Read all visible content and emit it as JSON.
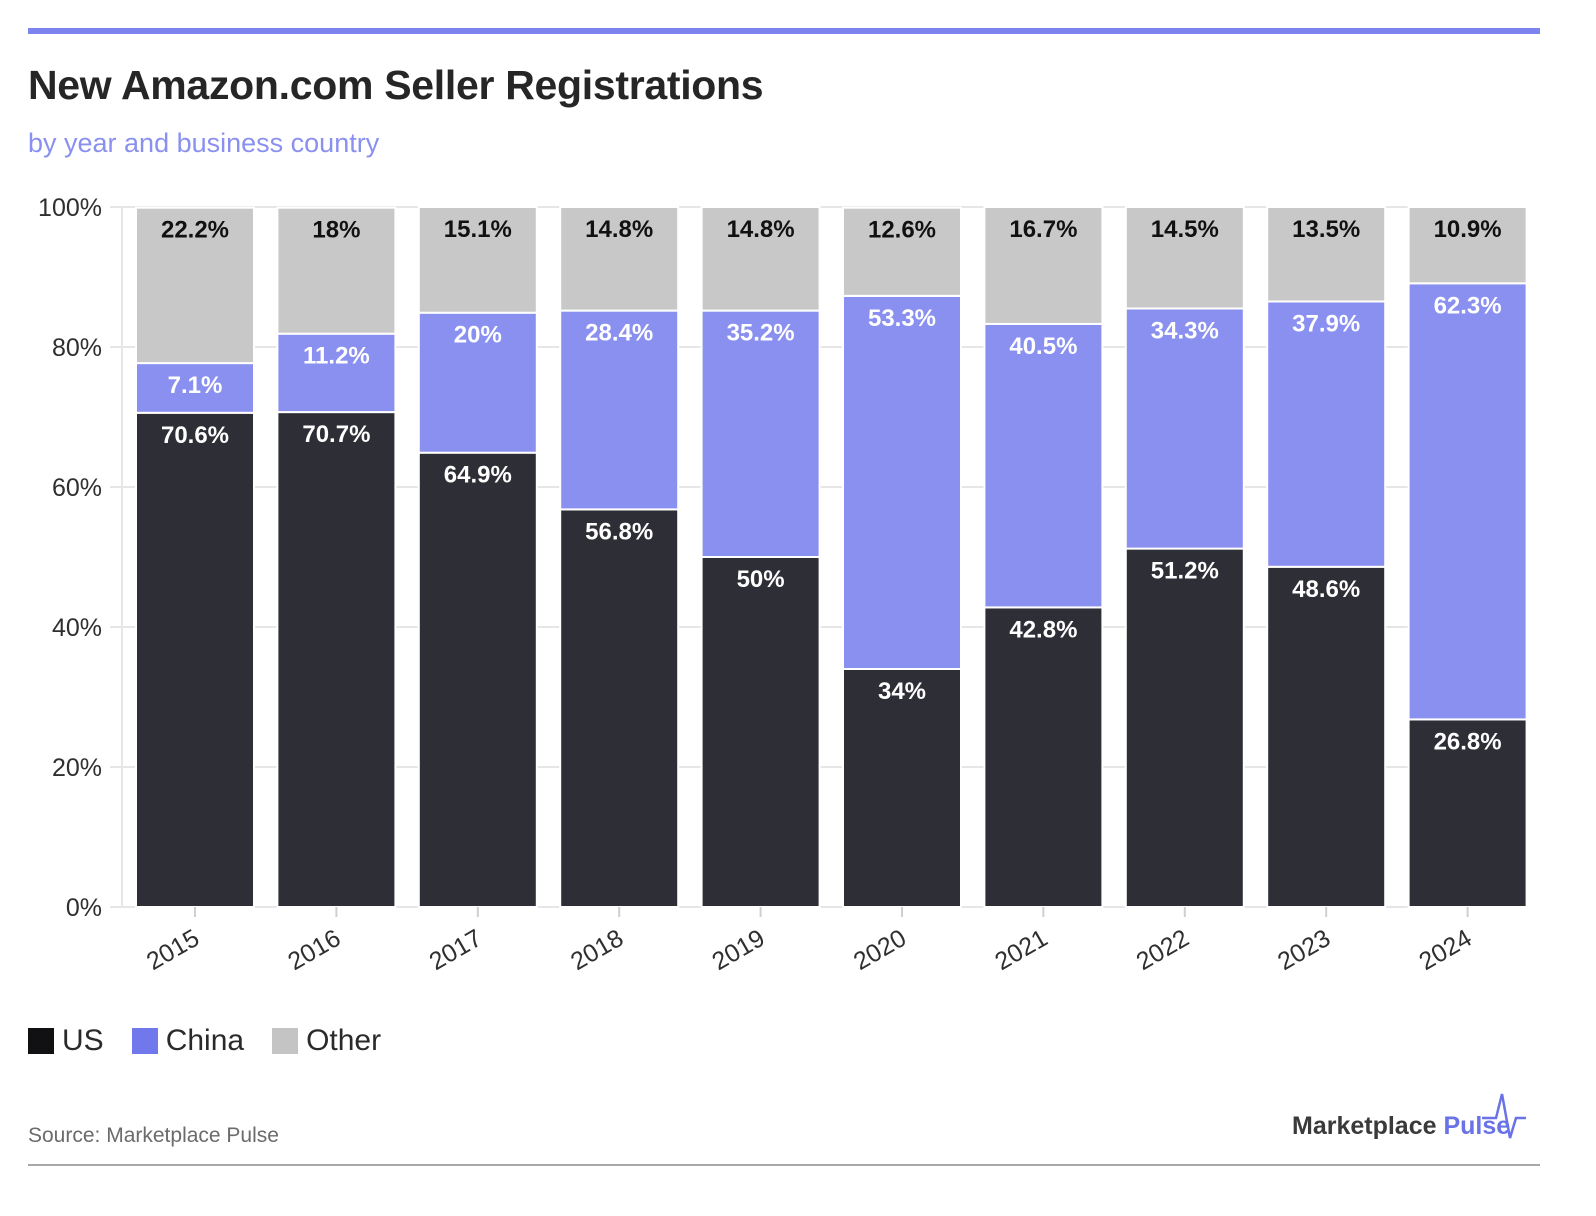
{
  "header": {
    "title": "New Amazon.com Seller Registrations",
    "subtitle": "by year and business country"
  },
  "colors": {
    "accent": "#7c83ee",
    "us": "#2e2e36",
    "china": "#8a90ef",
    "other": "#c8c8c8",
    "label_on_dark": "#ffffff",
    "label_on_light": "#111111"
  },
  "chart_data": {
    "type": "bar",
    "stacked": true,
    "title": "New Amazon.com Seller Registrations",
    "subtitle": "by year and business country",
    "categories": [
      "2015",
      "2016",
      "2017",
      "2018",
      "2019",
      "2020",
      "2021",
      "2022",
      "2023",
      "2024"
    ],
    "series": [
      {
        "name": "US",
        "values": [
          70.6,
          70.7,
          64.9,
          56.8,
          50,
          34,
          42.8,
          51.2,
          48.6,
          26.8
        ]
      },
      {
        "name": "China",
        "values": [
          7.1,
          11.2,
          20,
          28.4,
          35.2,
          53.3,
          40.5,
          34.3,
          37.9,
          62.3
        ]
      },
      {
        "name": "Other",
        "values": [
          22.2,
          18,
          15.1,
          14.8,
          14.8,
          12.6,
          16.7,
          14.5,
          13.5,
          10.9
        ]
      }
    ],
    "ylim": [
      0,
      100
    ],
    "yticks": [
      "0%",
      "20%",
      "40%",
      "60%",
      "80%",
      "100%"
    ],
    "grid": true,
    "legend_position": "bottom-left"
  },
  "legend": {
    "items": [
      {
        "label": "US"
      },
      {
        "label": "China"
      },
      {
        "label": "Other"
      }
    ]
  },
  "footer": {
    "source": "Source: Marketplace Pulse",
    "brand_name": "Marketplace",
    "brand_accent": "Pulse"
  }
}
